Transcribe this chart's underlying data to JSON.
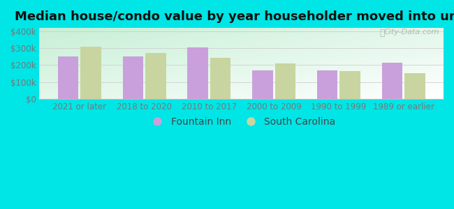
{
  "title": "Median house/condo value by year householder moved into unit",
  "categories": [
    "2021 or later",
    "2018 to 2020",
    "2010 to 2017",
    "2000 to 2009",
    "1990 to 1999",
    "1989 or earlier"
  ],
  "fountain_inn": [
    250000,
    253000,
    305000,
    168000,
    170000,
    215000
  ],
  "south_carolina": [
    310000,
    270000,
    243000,
    210000,
    165000,
    150000
  ],
  "bar_color_fi": "#c9a0dc",
  "bar_color_sc": "#c8d5a0",
  "background_outer": "#00e5e5",
  "ylim": [
    0,
    420000
  ],
  "yticks": [
    0,
    100000,
    200000,
    300000,
    400000
  ],
  "ytick_labels": [
    "$0",
    "$100k",
    "$200k",
    "$300k",
    "$400k"
  ],
  "legend_fi": "Fountain Inn",
  "legend_sc": "South Carolina",
  "watermark": "City-Data.com",
  "title_fontsize": 13,
  "tick_fontsize": 8.5,
  "legend_fontsize": 10,
  "bar_width": 0.32,
  "bar_gap": 0.03
}
